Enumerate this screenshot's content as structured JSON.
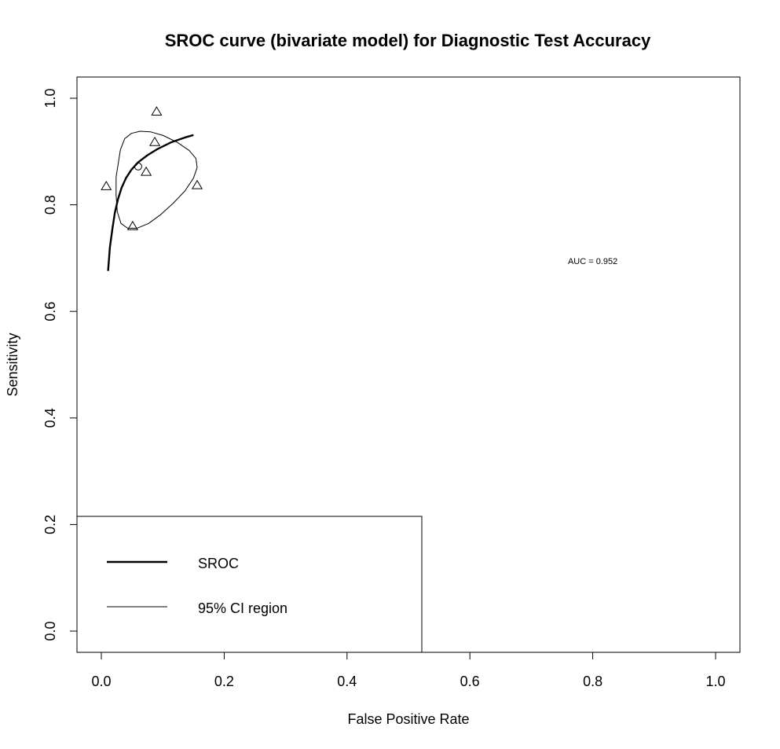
{
  "chart_data": {
    "type": "scatter",
    "title": "SROC curve (bivariate model) for Diagnostic Test Accuracy",
    "xlabel": "False Positive Rate",
    "ylabel": "Sensitivity",
    "xlim": [
      -0.04,
      1.04
    ],
    "ylim": [
      -0.04,
      1.04
    ],
    "x_ticks": [
      0.0,
      0.2,
      0.4,
      0.6,
      0.8,
      1.0
    ],
    "x_tick_labels": [
      "0.0",
      "0.2",
      "0.4",
      "0.6",
      "0.8",
      "1.0"
    ],
    "y_ticks": [
      0.0,
      0.2,
      0.4,
      0.6,
      0.8,
      1.0
    ],
    "y_tick_labels": [
      "0.0",
      "0.2",
      "0.4",
      "0.6",
      "0.8",
      "1.0"
    ],
    "grid": false,
    "studies": [
      {
        "x": 0.008,
        "y": 0.834
      },
      {
        "x": 0.051,
        "y": 0.759
      },
      {
        "x": 0.073,
        "y": 0.861
      },
      {
        "x": 0.087,
        "y": 0.917
      },
      {
        "x": 0.09,
        "y": 0.974
      },
      {
        "x": 0.156,
        "y": 0.836
      }
    ],
    "summary_point": {
      "x": 0.06,
      "y": 0.872
    },
    "sroc_curve": {
      "x": [
        0.011,
        0.014,
        0.018,
        0.022,
        0.027,
        0.033,
        0.04,
        0.049,
        0.06,
        0.075,
        0.092,
        0.113,
        0.135,
        0.15
      ],
      "y": [
        0.676,
        0.72,
        0.755,
        0.785,
        0.81,
        0.832,
        0.85,
        0.866,
        0.88,
        0.893,
        0.905,
        0.917,
        0.926,
        0.931
      ]
    },
    "ci_region": {
      "x": [
        0.031,
        0.038,
        0.049,
        0.063,
        0.08,
        0.101,
        0.124,
        0.143,
        0.154,
        0.156,
        0.15,
        0.136,
        0.117,
        0.097,
        0.077,
        0.058,
        0.043,
        0.032,
        0.026,
        0.024,
        0.024,
        0.028,
        0.031
      ],
      "y": [
        0.903,
        0.924,
        0.934,
        0.938,
        0.937,
        0.93,
        0.917,
        0.902,
        0.887,
        0.87,
        0.85,
        0.826,
        0.803,
        0.782,
        0.765,
        0.756,
        0.756,
        0.765,
        0.787,
        0.818,
        0.852,
        0.881,
        0.903
      ]
    },
    "legend": {
      "placement": "bottom-left",
      "entries": [
        {
          "label": "SROC",
          "line": "thick"
        },
        {
          "label": "95% CI region",
          "line": "thin"
        }
      ]
    },
    "annotation": {
      "text": "AUC = 0.952",
      "x": 0.8,
      "y": 0.695
    }
  }
}
